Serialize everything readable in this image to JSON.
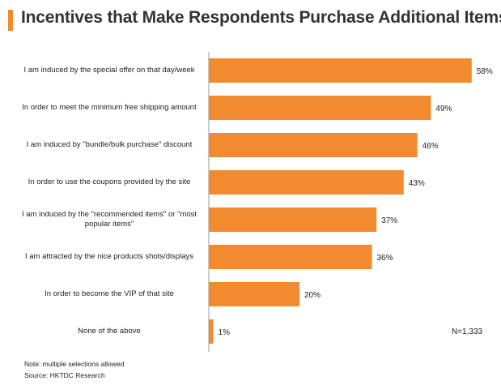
{
  "header": {
    "title": "Incentives that Make Respondents Purchase Additional Items"
  },
  "colors": {
    "accent": "#F28A30",
    "bar": "#F28A30",
    "axis": "#999999"
  },
  "chart_data": {
    "type": "bar",
    "orientation": "horizontal",
    "title": "Incentives that Make Respondents Purchase Additional Items",
    "categories": [
      "I am induced by the special offer on that day/week",
      "In order to meet the minimum free shipping amount",
      "I am induced by \"bundle/bulk purchase\" discount",
      "In order to use the coupons provided by the site",
      "I am induced by the \"recommended items\" or \"most popular items\"",
      "I am attracted by the nice products shots/displays",
      "In order to become the VIP of that site",
      "None of the above"
    ],
    "values": [
      58,
      49,
      46,
      43,
      37,
      36,
      20,
      1
    ],
    "value_labels": [
      "58%",
      "49%",
      "46%",
      "43%",
      "37%",
      "36%",
      "20%",
      "1%"
    ],
    "xlim": [
      0,
      60
    ],
    "grid": false,
    "legend": "none"
  },
  "sample_size": "N=1,333",
  "footnotes": {
    "note": "Note: multiple selections allowed",
    "source": "Source: HKTDC Research"
  }
}
